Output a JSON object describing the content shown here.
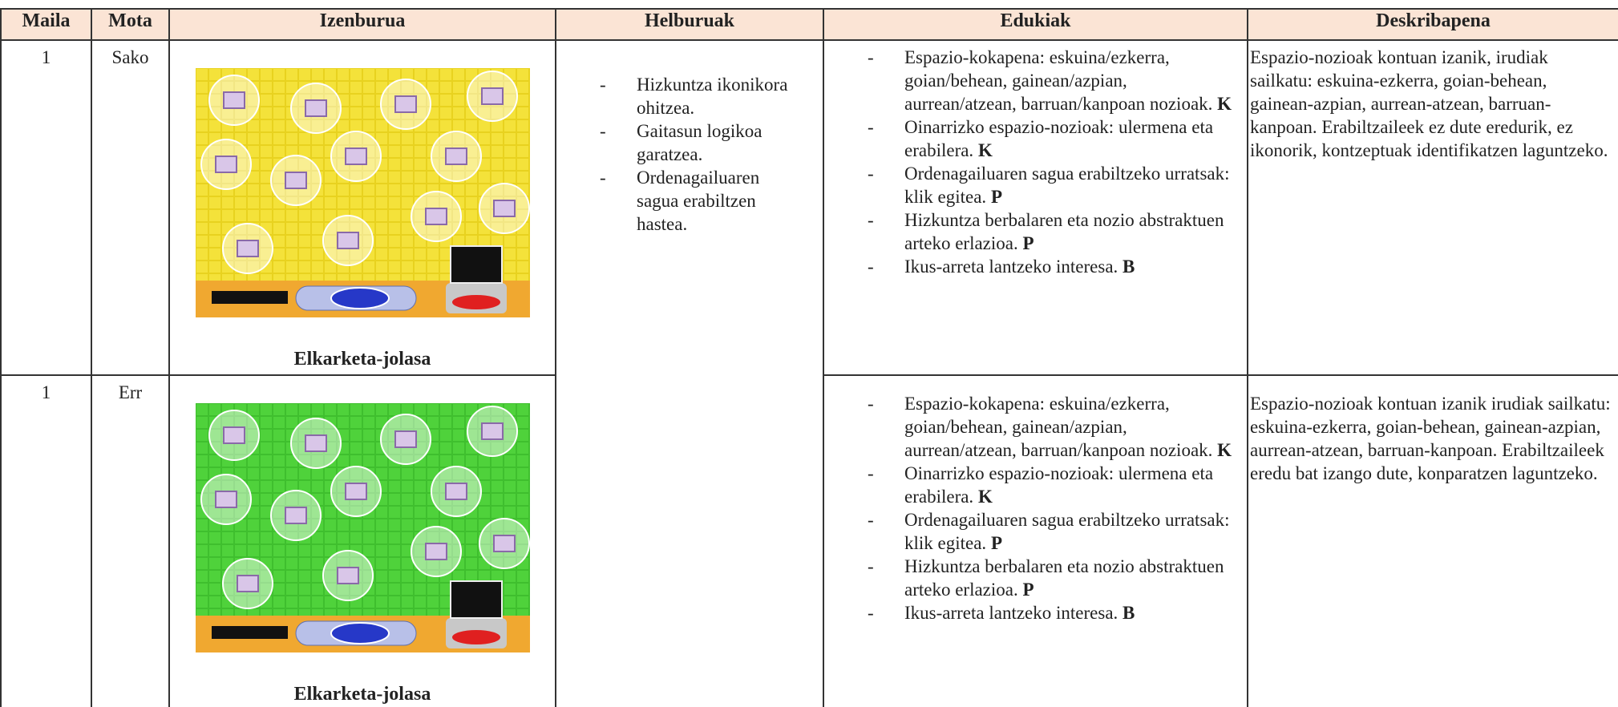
{
  "table": {
    "header": [
      "Maila",
      "Mota",
      "Izenburua",
      "Helburuak",
      "Edukiak",
      "Deskribapena"
    ],
    "helburuak": [
      "Hizkuntza ikonikora ohitzea.",
      "Gaitasun logikoa garatzea.",
      "Ordenagailuaren sagua erabiltzen hastea."
    ],
    "rows": [
      {
        "maila": "1",
        "mota": "Sako",
        "izenburua": "Elkarketa-jolasa",
        "edukiak": [
          {
            "text": "Espazio-kokapena: eskuina/ezkerra, goian/behean, gainean/azpian, aurrean/atzean, barruan/kanpoan nozioak.",
            "code": "K"
          },
          {
            "text": "Oinarrizko espazio-nozioak: ulermena eta erabilera.",
            "code": "K"
          },
          {
            "text": "Ordenagailuaren sagua erabiltzeko urratsak: klik egitea.",
            "code": "P"
          },
          {
            "text": "Hizkuntza berbalaren eta nozio abstraktuen arteko erlazioa.",
            "code": "P"
          },
          {
            "text": "Ikus-arreta lantzeko interesa.",
            "code": "B"
          }
        ],
        "deskribapena": "Espazio-nozioak kontuan izanik, irudiak sailkatu: eskuina-ezkerra, goian-behean, gainean-azpian, aurrean-atzean, barruan-kanpoan. Erabiltzaileek ez dute eredurik, ez ikonorik, kontzeptuak identifikatzen laguntzeko."
      },
      {
        "maila": "1",
        "mota": "Err",
        "izenburua": "Elkarketa-jolasa",
        "edukiak": [
          {
            "text": "Espazio-kokapena: eskuina/ezkerra, goian/behean, gainean/azpian, aurrean/atzean, barruan/kanpoan nozioak.",
            "code": "K"
          },
          {
            "text": "Oinarrizko espazio-nozioak: ulermena eta erabilera.",
            "code": "K"
          },
          {
            "text": "Ordenagailuaren sagua erabiltzeko urratsak: klik egitea.",
            "code": "P"
          },
          {
            "text": "Hizkuntza berbalaren eta nozio abstraktuen arteko erlazioa.",
            "code": "P"
          },
          {
            "text": "Ikus-arreta lantzeko interesa.",
            "code": "B"
          }
        ],
        "deskribapena": "Espazio-nozioak kontuan izanik irudiak sailkatu: eskuina-ezkerra, goian-behean, gainean-azpian, aurrean-atzean, barruan-kanpoan. Erabiltzaileek eredu bat izango dute, konparatzen laguntzeko."
      }
    ]
  }
}
